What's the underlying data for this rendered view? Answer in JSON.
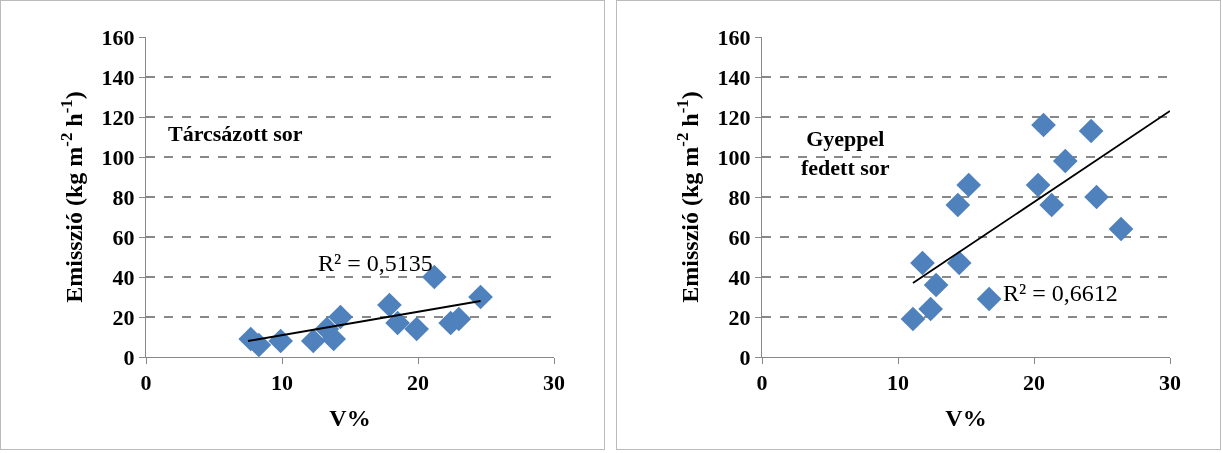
{
  "chart_data": [
    {
      "type": "scatter",
      "xlabel": "V%",
      "ylabel": "Emisszió (kg m$^{-2}$ h$^{-1}$)",
      "xlim": [
        0,
        30
      ],
      "xticks": [
        0,
        10,
        20,
        30
      ],
      "ylim": [
        0,
        160
      ],
      "yticks": [
        0,
        20,
        40,
        60,
        80,
        100,
        120,
        140,
        160
      ],
      "grid": "y",
      "marker": "diamond",
      "annotations": [
        "Tárcsázott sor",
        "R² = 0,5135"
      ],
      "series": [
        {
          "color": "#4f81bd",
          "x": [
            7.7,
            8.3,
            9.9,
            12.3,
            13.8,
            13.3,
            14.3,
            17.9,
            18.5,
            19.9,
            21.2,
            22.4,
            23.0,
            24.6
          ],
          "values": [
            9,
            6,
            8,
            8,
            9,
            14,
            20,
            26,
            17,
            14,
            40,
            17,
            19,
            30
          ]
        },
        {
          "type": "line",
          "color": "#000000",
          "line_style": "solid",
          "marker": "none",
          "x": [
            7.5,
            24.6
          ],
          "values": [
            8,
            28
          ]
        }
      ]
    },
    {
      "type": "scatter",
      "xlabel": "V%",
      "ylabel": "Emisszió (kg m$^{-2}$ h$^{-1}$)",
      "xlim": [
        0,
        30
      ],
      "xticks": [
        0,
        10,
        20,
        30
      ],
      "ylim": [
        0,
        160
      ],
      "yticks": [
        0,
        20,
        40,
        60,
        80,
        100,
        120,
        140,
        160
      ],
      "grid": "y",
      "marker": "diamond",
      "annotations": [
        "Gyeppel\nfedett sor",
        "R² = 0,6612"
      ],
      "series": [
        {
          "color": "#4f81bd",
          "x": [
            20.7,
            24.2,
            22.3,
            15.2,
            20.3,
            14.4,
            21.3,
            24.6,
            26.4,
            11.8,
            14.5,
            12.8,
            16.7,
            12.4,
            11.1
          ],
          "values": [
            116,
            113,
            98,
            86,
            86,
            76,
            76,
            80,
            64,
            47,
            47,
            36,
            29,
            24,
            19
          ]
        },
        {
          "type": "line",
          "color": "#000000",
          "line_style": "solid",
          "marker": "none",
          "x": [
            11.1,
            30
          ],
          "values": [
            37,
            123
          ]
        }
      ]
    }
  ]
}
